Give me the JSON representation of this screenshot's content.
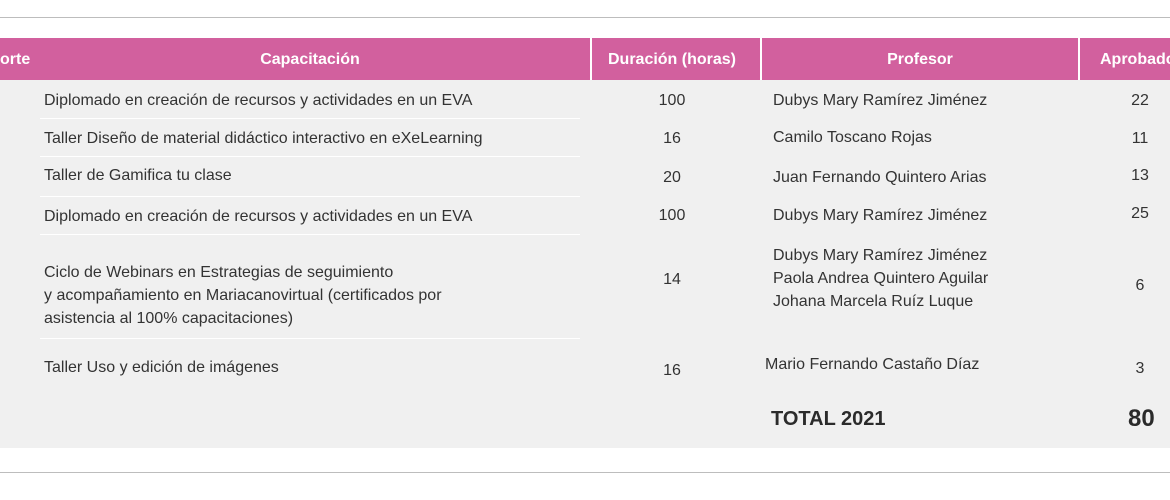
{
  "table": {
    "headers": {
      "cohort": "orte",
      "training": "Capacitación",
      "duration": "Duración (horas)",
      "teacher": "Profesor",
      "approved": "Aprobado"
    },
    "rows": [
      {
        "training": "Diplomado en creación de recursos y actividades en un EVA",
        "duration": "100",
        "teacher": [
          "Dubys Mary Ramírez Jiménez"
        ],
        "approved": "22"
      },
      {
        "training": "Taller Diseño de material didáctico interactivo en eXeLearning",
        "duration": "16",
        "teacher": [
          "Camilo Toscano Rojas"
        ],
        "approved": "11"
      },
      {
        "training": "Taller de Gamifica tu clase",
        "duration": "20",
        "teacher": [
          "Juan Fernando Quintero Arias"
        ],
        "approved": "13"
      },
      {
        "training": "Diplomado en creación de recursos y actividades en un EVA",
        "duration": "100",
        "teacher": [
          "Dubys Mary Ramírez Jiménez"
        ],
        "approved": "25"
      },
      {
        "training": [
          "Ciclo de Webinars en Estrategias de seguimiento",
          "y acompañamiento en Mariacanovirtual (certificados por",
          "asistencia al 100% capacitaciones)"
        ],
        "duration": "14",
        "teacher": [
          "Dubys Mary Ramírez Jiménez",
          "Paola Andrea Quintero Aguilar",
          "Johana Marcela Ruíz Luque"
        ],
        "approved": "6"
      },
      {
        "training": "Taller Uso y edición de imágenes",
        "duration": "16",
        "teacher": [
          "Mario Fernando Castaño Díaz"
        ],
        "approved": "3"
      }
    ],
    "total": {
      "label": "TOTAL 2021",
      "value": "80"
    }
  },
  "colors": {
    "header_bg": "#d2609e",
    "body_bg": "#f0f0f0",
    "rule": "#bdbdbd"
  }
}
